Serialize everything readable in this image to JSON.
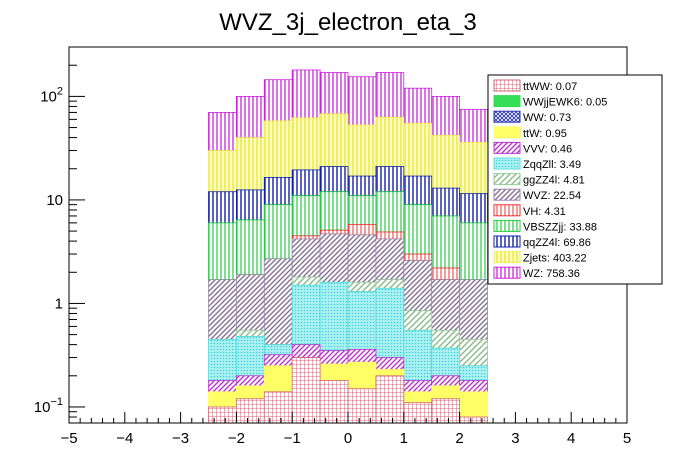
{
  "chart_data": {
    "type": "bar",
    "subtype": "stacked-histogram",
    "title": "WVZ_3j_electron_eta_3",
    "xlabel": "",
    "ylabel": "",
    "xlim": [
      -5,
      5
    ],
    "ylim": [
      0.07,
      300
    ],
    "ylog": true,
    "grid": false,
    "legend_position": "top-right",
    "x_ticks": [
      "−5",
      "−4",
      "−3",
      "−2",
      "−1",
      "0",
      "1",
      "2",
      "3",
      "4",
      "5"
    ],
    "y_ticks": [
      {
        "value": 0.1,
        "base": "10",
        "exp": "−1"
      },
      {
        "value": 1,
        "label": "1"
      },
      {
        "value": 10,
        "label": "10"
      },
      {
        "value": 100,
        "base": "10",
        "exp": "2"
      }
    ],
    "bin_edges": [
      -2.5,
      -2.0,
      -1.5,
      -1.0,
      -0.5,
      0.0,
      0.5,
      1.0,
      1.5,
      2.0,
      2.5
    ],
    "cumulative_stack_tops": [
      {
        "name": "ttWW",
        "values": [
          0.1,
          0.12,
          0.14,
          0.3,
          0.18,
          0.15,
          0.2,
          0.11,
          0.12,
          0.08
        ]
      },
      {
        "name": "WWjjEWK6",
        "values": [
          0.1,
          0.12,
          0.14,
          0.3,
          0.18,
          0.15,
          0.2,
          0.11,
          0.12,
          0.08
        ]
      },
      {
        "name": "WW",
        "values": [
          0.1,
          0.12,
          0.14,
          0.3,
          0.18,
          0.15,
          0.2,
          0.11,
          0.12,
          0.08
        ]
      },
      {
        "name": "ttW",
        "values": [
          0.14,
          0.16,
          0.25,
          0.3,
          0.26,
          0.27,
          0.23,
          0.14,
          0.16,
          0.14
        ]
      },
      {
        "name": "VVV",
        "values": [
          0.18,
          0.2,
          0.32,
          0.4,
          0.35,
          0.36,
          0.3,
          0.18,
          0.2,
          0.18
        ]
      },
      {
        "name": "ZqqZll",
        "values": [
          0.45,
          0.48,
          0.4,
          1.5,
          1.6,
          1.3,
          1.4,
          0.55,
          0.37,
          0.25
        ]
      },
      {
        "name": "ggZZ4l",
        "values": [
          0.45,
          0.55,
          0.4,
          1.8,
          1.6,
          1.6,
          1.7,
          0.85,
          0.55,
          0.45
        ]
      },
      {
        "name": "WVZ",
        "values": [
          1.7,
          1.9,
          2.7,
          4.2,
          4.7,
          4.6,
          4.2,
          2.6,
          1.7,
          1.7
        ]
      },
      {
        "name": "VH",
        "values": [
          1.7,
          1.9,
          2.7,
          4.5,
          5.1,
          5.8,
          4.9,
          3.0,
          2.2,
          1.7
        ]
      },
      {
        "name": "VBSZZjj",
        "values": [
          6.0,
          6.4,
          9.0,
          11.0,
          12.0,
          11.0,
          12.0,
          9.0,
          7.0,
          6.0
        ]
      },
      {
        "name": "qqZZ4l",
        "values": [
          12.0,
          12.5,
          16.5,
          19.5,
          21.0,
          17.0,
          21.0,
          17.0,
          13.0,
          11.5
        ]
      },
      {
        "name": "Zjets",
        "values": [
          30.0,
          40.0,
          58.0,
          62.0,
          68.0,
          53.0,
          63.0,
          55.0,
          42.0,
          36.0
        ]
      },
      {
        "name": "WZ",
        "values": [
          70.0,
          100.0,
          145.0,
          180.0,
          170.0,
          155.0,
          170.0,
          120.0,
          100.0,
          75.0
        ]
      }
    ],
    "legend": [
      {
        "label": "ttWW: 0.07",
        "color": "#cc6677",
        "pattern": "grid"
      },
      {
        "label": "WWjjEWK6: 0.05",
        "color": "#33dd55",
        "pattern": "solid"
      },
      {
        "label": "WW: 0.73",
        "color": "#2233aa",
        "pattern": "dense-cross"
      },
      {
        "label": "ttW: 0.95",
        "color": "#ffff66",
        "pattern": "solid"
      },
      {
        "label": "VVV: 0.46",
        "color": "#bb33cc",
        "pattern": "diagonal"
      },
      {
        "label": "ZqqZll: 3.49",
        "color": "#55dddd",
        "pattern": "dots"
      },
      {
        "label": "ggZZ4l: 4.81",
        "color": "#99cc99",
        "pattern": "diagonal"
      },
      {
        "label": "WVZ: 22.54",
        "color": "#9988aa",
        "pattern": "diagonal"
      },
      {
        "label": "VH: 4.31",
        "color": "#ee3333",
        "pattern": "vertical"
      },
      {
        "label": "VBSZZjj: 33.88",
        "color": "#22cc44",
        "pattern": "vertical"
      },
      {
        "label": "qqZZ4l: 69.86",
        "color": "#1122aa",
        "pattern": "vertical"
      },
      {
        "label": "Zjets: 403.22",
        "color": "#eeee55",
        "pattern": "vertical"
      },
      {
        "label": "WZ: 758.36",
        "color": "#cc22dd",
        "pattern": "vertical"
      }
    ]
  }
}
